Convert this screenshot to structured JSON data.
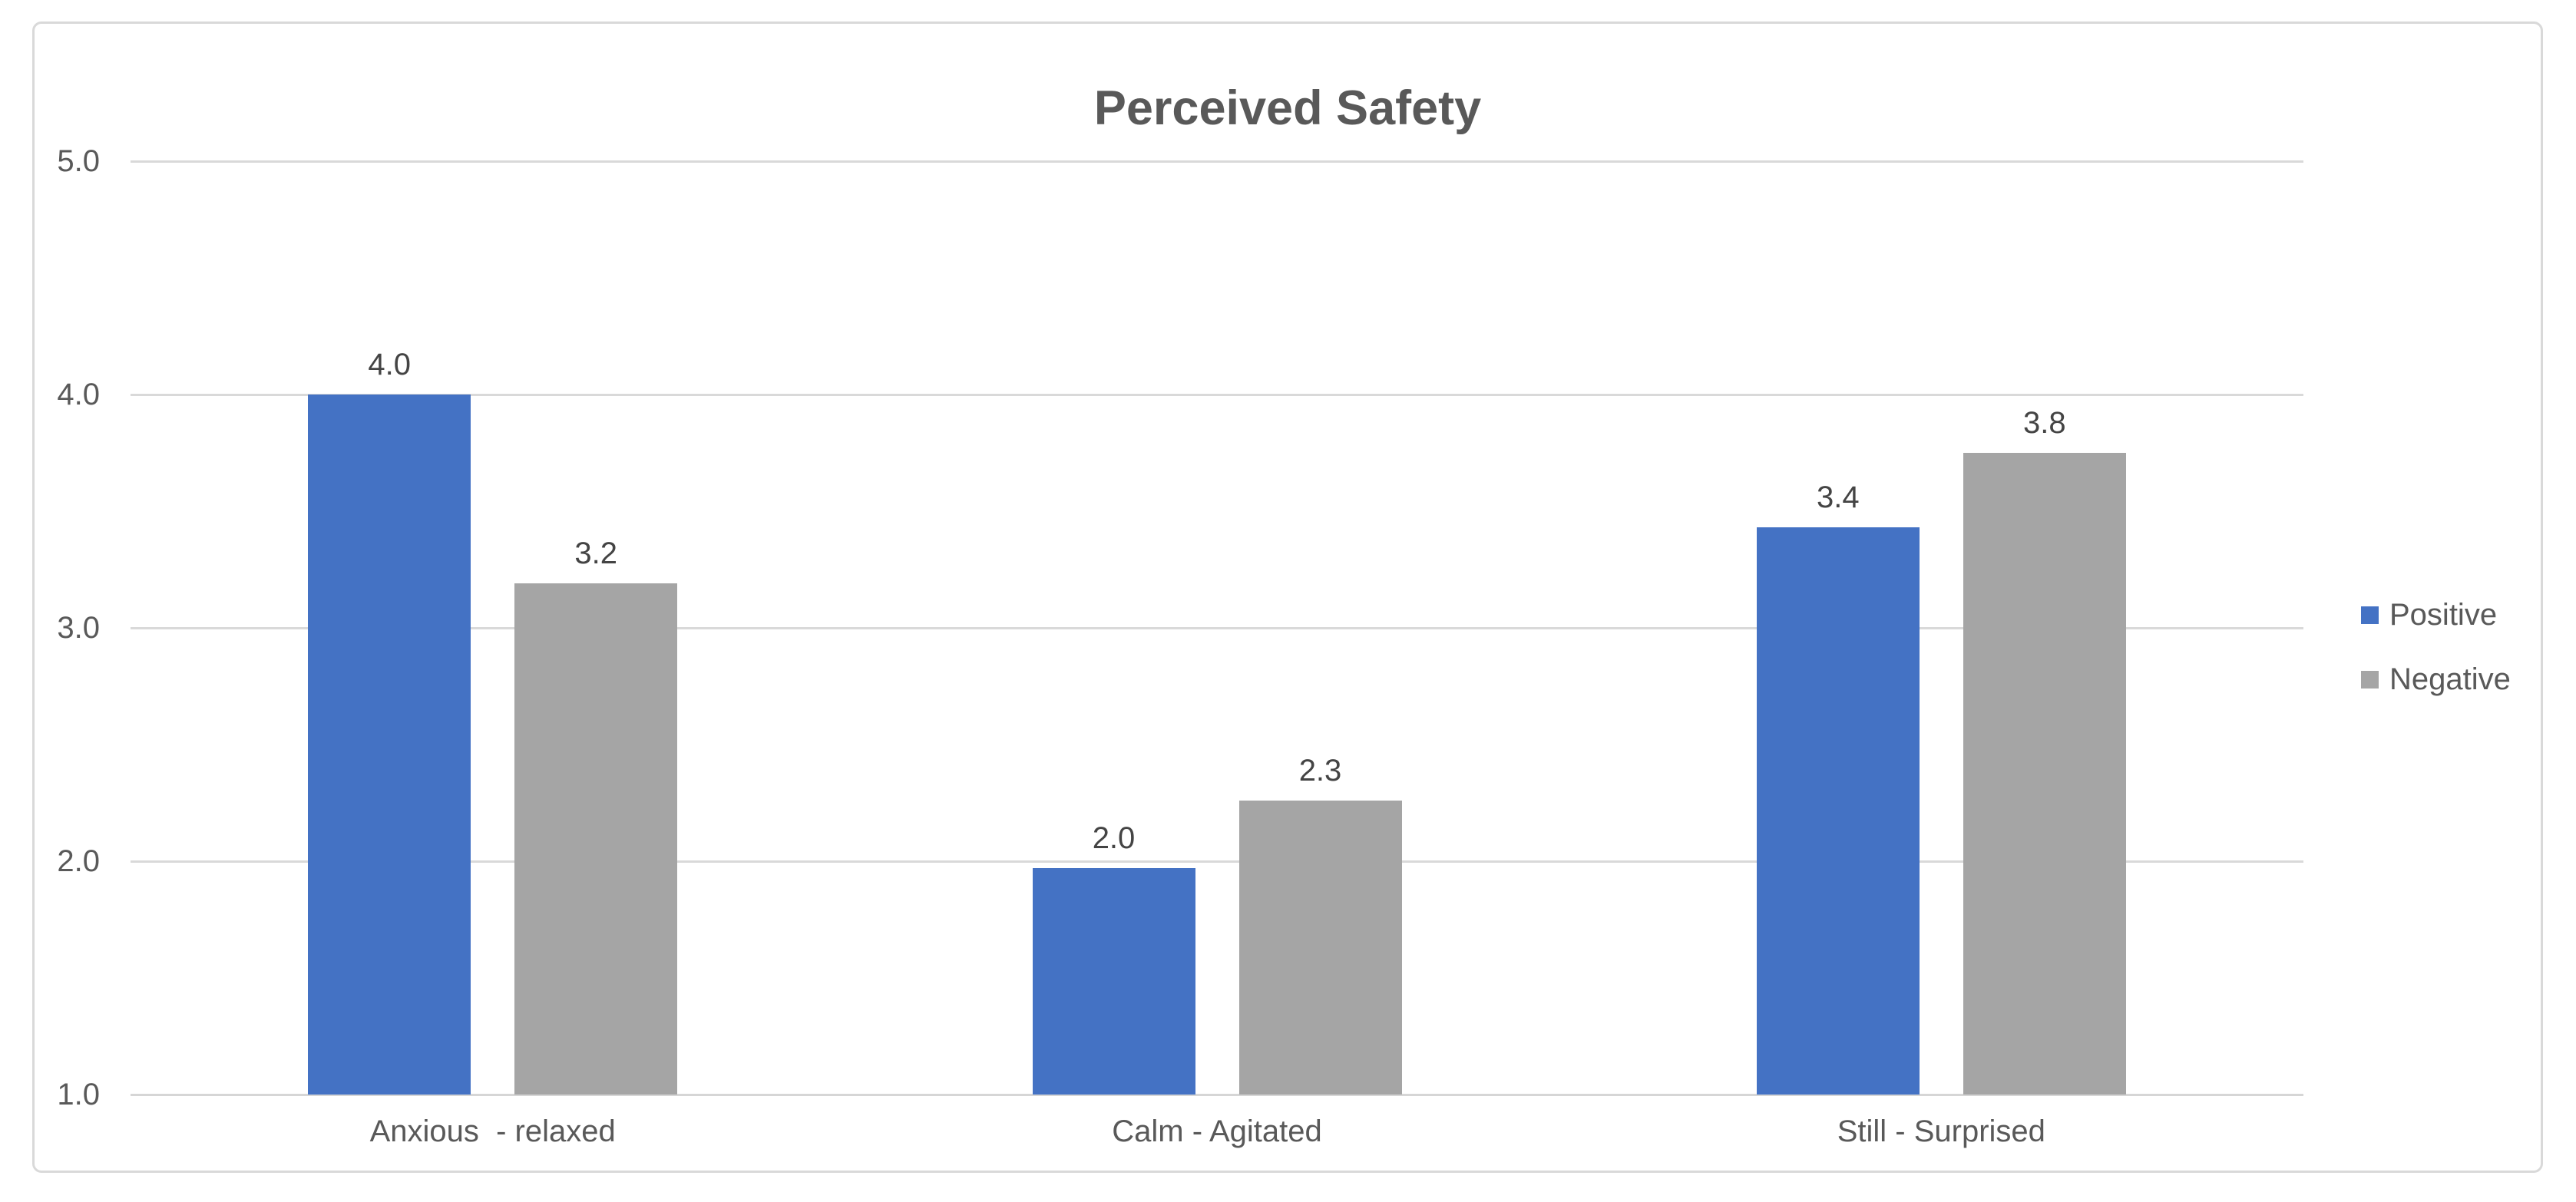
{
  "chart_data": {
    "type": "bar",
    "title": "Perceived Safety",
    "categories": [
      "Anxious  - relaxed",
      "Calm - Agitated",
      "Still - Surprised"
    ],
    "series": [
      {
        "name": "Positive",
        "color": "#4472C4",
        "values": [
          4.0,
          2.0,
          3.4
        ],
        "value_labels": [
          "4.0",
          "2.0",
          "3.4"
        ],
        "precise_values": [
          4.0,
          1.97,
          3.43
        ]
      },
      {
        "name": "Negative",
        "color": "#A5A5A5",
        "values": [
          3.2,
          2.3,
          3.8
        ],
        "value_labels": [
          "3.2",
          "2.3",
          "3.8"
        ],
        "precise_values": [
          3.19,
          2.26,
          3.75
        ]
      }
    ],
    "y_axis": {
      "min": 1.0,
      "max": 5.0,
      "tick_values": [
        5.0,
        4.0,
        3.0,
        2.0,
        1.0
      ],
      "tick_labels": [
        "5.0",
        "4.0",
        "3.0",
        "2.0",
        "1.0"
      ]
    },
    "xlabel": "",
    "ylabel": "",
    "grid": true,
    "legend_position": "right"
  },
  "colors": {
    "positive_series": "#4472C4",
    "negative_series": "#A5A5A5",
    "gridline": "#D9D9D9",
    "frame_border": "#D9D9D9",
    "axis_text": "#595959",
    "title_text": "#595959",
    "value_label_text": "#444444"
  }
}
